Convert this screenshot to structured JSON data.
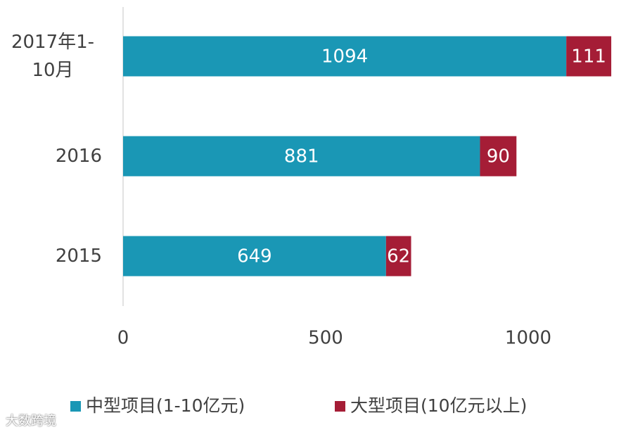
{
  "chart_data": {
    "type": "stacked-barh",
    "categories": [
      "2017年1-10月",
      "2016",
      "2015"
    ],
    "series": [
      {
        "name": "中型项目(1-10亿元)",
        "color": "#1a97b5",
        "values": [
          1094,
          881,
          649
        ]
      },
      {
        "name": "大型项目(10亿元以上)",
        "color": "#a51d36",
        "values": [
          111,
          90,
          62
        ]
      }
    ],
    "xlim": [
      0,
      1250
    ],
    "xticks": [
      0,
      500,
      1000
    ],
    "legend": "bottom"
  },
  "watermark": "大数跨境"
}
